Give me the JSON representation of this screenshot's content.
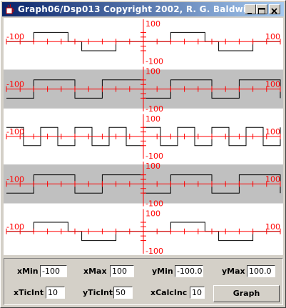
{
  "window": {
    "title": "Graph06/Dsp013 Copyright 2002, R. G. Baldwin",
    "buttons": [
      "minimize",
      "maximize",
      "close"
    ]
  },
  "icons": {
    "app": "java-cup-icon",
    "minimize": "minimize-icon",
    "maximize": "maximize-icon",
    "close": "close-icon"
  },
  "colors": {
    "axis": "#ff0000",
    "trace": "#000000",
    "band_dark": "#c0c0c0",
    "band_light": "#ffffff"
  },
  "chart_data": [
    {
      "type": "line",
      "xlim": [
        -100,
        100
      ],
      "ylim": [
        -100,
        100
      ],
      "tick_labels": {
        "x_left": "-100",
        "x_right": "100",
        "y_top": "100",
        "y_bottom": "-100"
      },
      "background": "light",
      "series": [
        {
          "pattern": "square-wave-3-level",
          "period": 100,
          "high": 1,
          "low": -1,
          "mid": 0
        }
      ]
    },
    {
      "type": "line",
      "xlim": [
        -100,
        100
      ],
      "ylim": [
        -100,
        100
      ],
      "tick_labels": {
        "x_left": "-100",
        "x_right": "100",
        "y_top": "100",
        "y_bottom": "-100"
      },
      "background": "dark",
      "series": [
        {
          "pattern": "pulse",
          "period": 50,
          "high": 1,
          "low": -1,
          "duty": 0.4
        }
      ]
    },
    {
      "type": "line",
      "xlim": [
        -100,
        100
      ],
      "ylim": [
        -100,
        100
      ],
      "tick_labels": {
        "x_left": "-100",
        "x_right": "100",
        "y_top": "100",
        "y_bottom": "-100"
      },
      "background": "light",
      "series": [
        {
          "pattern": "square",
          "period": 25,
          "high": 1,
          "low": -1,
          "duty": 0.5
        }
      ]
    },
    {
      "type": "line",
      "xlim": [
        -100,
        100
      ],
      "ylim": [
        -100,
        100
      ],
      "tick_labels": {
        "x_left": "-100",
        "x_right": "100",
        "y_top": "100",
        "y_bottom": "-100"
      },
      "background": "dark",
      "series": [
        {
          "pattern": "pulse",
          "period": 50,
          "high": 1,
          "low": -1,
          "duty": 0.4
        }
      ]
    },
    {
      "type": "line",
      "xlim": [
        -100,
        100
      ],
      "ylim": [
        -100,
        100
      ],
      "tick_labels": {
        "x_left": "-100",
        "x_right": "100",
        "y_top": "100",
        "y_bottom": "-100"
      },
      "background": "light",
      "series": [
        {
          "pattern": "square-wave-3-level",
          "period": 100,
          "high": 1,
          "low": -1,
          "mid": 0
        }
      ]
    }
  ],
  "controls": {
    "xMin": {
      "label": "xMin",
      "value": "-100"
    },
    "xMax": {
      "label": "xMax",
      "value": "100"
    },
    "yMin": {
      "label": "yMin",
      "value": "-100.0"
    },
    "yMax": {
      "label": "yMax",
      "value": "100.0"
    },
    "xTicInt": {
      "label": "xTicInt",
      "value": "10"
    },
    "yTicInt": {
      "label": "yTicInt",
      "value": "50"
    },
    "xCalcInc": {
      "label": "xCalcInc",
      "value": "10"
    },
    "graph_button": "Graph"
  }
}
